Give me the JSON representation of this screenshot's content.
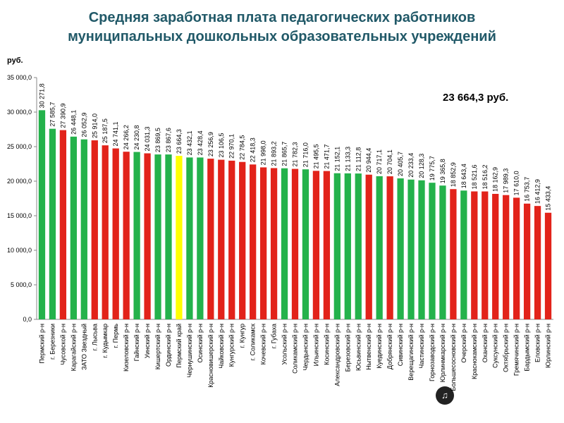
{
  "page": {
    "title_line1": "Средняя заработная плата педагогических работников",
    "title_line2": "муниципальных дошкольных образовательных учреждений",
    "unit_label": "руб.",
    "callout_text": "23 664,3 руб.",
    "watermark_icon": "logo-icon"
  },
  "colors": {
    "green": "#24b24b",
    "red": "#e2231a",
    "yellow": "#ffff00",
    "title": "#215968"
  },
  "chart_data": {
    "type": "bar",
    "title": "Средняя заработная плата педагогических работников муниципальных дошкольных образовательных учреждений",
    "ylabel": "руб.",
    "ylim": [
      0,
      35000
    ],
    "ytick_step": 5000,
    "ytick_labels": [
      "0,0",
      "5 000,0",
      "10 000,0",
      "15 000,0",
      "20 000,0",
      "25 000,0",
      "30 000,0",
      "35 000,0"
    ],
    "grid": false,
    "categories": [
      "Пермский р-н",
      "г. Березники",
      "Чусовской р-н",
      "Карагайский р-н",
      "ЗАТО Звездный",
      "г. Лысьва",
      "г. Кудымкар",
      "г. Пермь",
      "Кизеловский р-н",
      "Гайнский р-н",
      "Уинский р-н",
      "Кишертский р-н",
      "Ординский р-н",
      "Пермский край",
      "Чернушинский р-н",
      "Осинский р-н",
      "Красновишерский р-н",
      "Чайковский р-н",
      "Кунгурский р-н",
      "г. Кунгур",
      "г. Соликамск",
      "Кочевский р-н",
      "г. Губаха",
      "Усольский р-н",
      "Соликамский р-н",
      "Чердынский р-н",
      "Ильинский р-н",
      "Косинский р-н",
      "Александровский р-н",
      "Березовский р-н",
      "Юсьвинский р-н",
      "Нытвенский р-н",
      "Куединский р-н",
      "Добрянский р-н",
      "Сивинский р-н",
      "Верещагинский р-н",
      "Частинский р-н",
      "Горнозаводский р-н",
      "Юрлинмкарский р-н",
      "Большесосновский р-н",
      "Очерский р-н",
      "Краснокамский р-н",
      "Оханский р-н",
      "Суксунский р-н",
      "Октябрьский р-н",
      "Гремячинский р-н",
      "Бардымский р-н",
      "Еловский р-н",
      "Юрлинский р-н"
    ],
    "values": [
      30271.8,
      27585.7,
      27390.9,
      26448.1,
      26052.9,
      25914.0,
      25187.5,
      24741.1,
      24266.2,
      24230.8,
      24031.3,
      23869.5,
      23867.6,
      23664.3,
      23432.1,
      23428.4,
      23256.9,
      23106.5,
      22970.1,
      22784.5,
      22418.3,
      21998.0,
      21893.2,
      21865.7,
      21782.3,
      21716.0,
      21495.5,
      21471.7,
      21152.1,
      21133.3,
      21112.8,
      20944.4,
      20717.1,
      20704.1,
      20405.7,
      20233.4,
      20128.3,
      19775.7,
      19365.8,
      18852.9,
      18643.4,
      18521.6,
      18516.2,
      18162.9,
      17989.3,
      17610.0,
      16753.7,
      16412.9,
      15433.4
    ],
    "value_labels": [
      "30 271,8",
      "27 585,7",
      "27 390,9",
      "26 448,1",
      "26 052,9",
      "25 914,0",
      "25 187,5",
      "24 741,1",
      "24 266,2",
      "24 230,8",
      "24 031,3",
      "23 869,5",
      "23 867,6",
      "23 664,3",
      "23 432,1",
      "23 428,4",
      "23 256,9",
      "23 106,5",
      "22 970,1",
      "22 784,5",
      "22 418,3",
      "21 998,0",
      "21 893,2",
      "21 865,7",
      "21 782,3",
      "21 716,0",
      "21 495,5",
      "21 471,7",
      "21 152,1",
      "21 133,3",
      "21 112,8",
      "20 944,4",
      "20 717,1",
      "20 704,1",
      "20 405,7",
      "20 233,4",
      "20 128,3",
      "19 775,7",
      "19 365,8",
      "18 852,9",
      "18 643,4",
      "18 521,6",
      "18 516,2",
      "18 162,9",
      "17 989,3",
      "17 610,0",
      "16 753,7",
      "16 412,9",
      "15 433,4"
    ],
    "bar_colors": [
      "green",
      "green",
      "red",
      "green",
      "green",
      "red",
      "red",
      "red",
      "red",
      "green",
      "red",
      "green",
      "green",
      "yellow",
      "green",
      "green",
      "red",
      "red",
      "red",
      "red",
      "red",
      "red",
      "red",
      "green",
      "red",
      "green",
      "red",
      "red",
      "green",
      "green",
      "green",
      "red",
      "green",
      "red",
      "green",
      "green",
      "green",
      "green",
      "green",
      "red",
      "green",
      "red",
      "red",
      "red",
      "red",
      "red",
      "red",
      "red",
      "red"
    ]
  }
}
